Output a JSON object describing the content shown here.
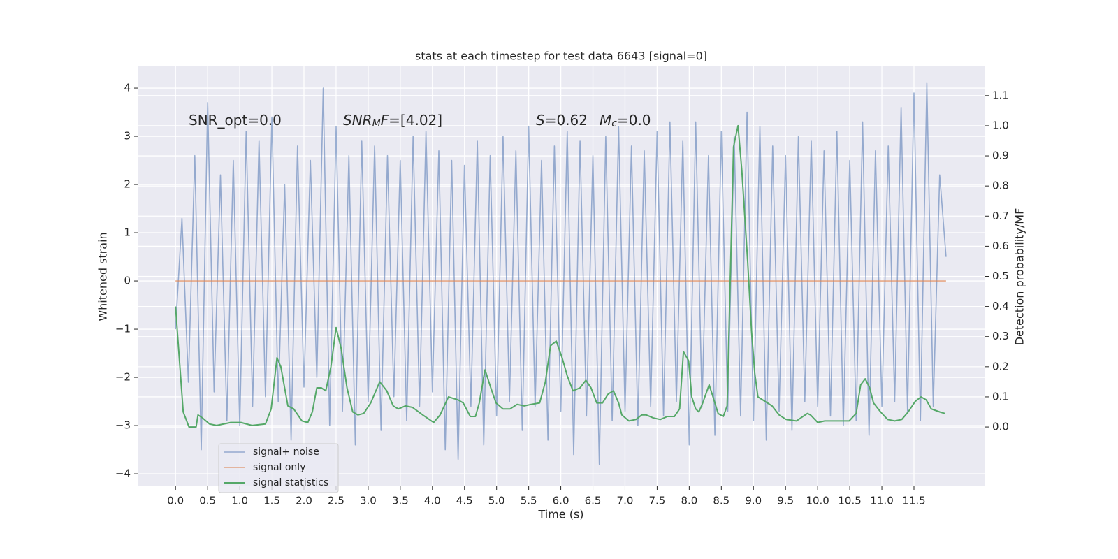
{
  "chart_data": {
    "type": "line",
    "title": "stats at each timestep for test data 6643 [signal=0]",
    "xlabel": "Time (s)",
    "ylabel": "Whitened strain",
    "y2label": "Detection probability/MF",
    "xlim": [
      -0.59,
      12.61
    ],
    "ylim": [
      -4.26,
      4.45
    ],
    "y2lim": [
      -0.197,
      1.197
    ],
    "xticks": [
      {
        "value": 0,
        "label": "0.0"
      },
      0.5,
      {
        "value": 1,
        "label": "1.0"
      },
      1.5,
      {
        "value": 2,
        "label": "2.0"
      },
      2.5,
      {
        "value": 3,
        "label": "3.0"
      },
      3.5,
      {
        "value": 4,
        "label": "4.0"
      },
      4.5,
      {
        "value": 5,
        "label": "5.0"
      },
      5.5,
      {
        "value": 6,
        "label": "6.0"
      },
      6.5,
      {
        "value": 7,
        "label": "7.0"
      },
      7.5,
      {
        "value": 8,
        "label": "8.0"
      },
      8.5,
      {
        "value": 9,
        "label": "9.0"
      },
      9.5,
      {
        "value": 10,
        "label": "10.0"
      },
      10.5,
      {
        "value": 11,
        "label": "11.0"
      },
      11.5
    ],
    "yticks": [
      {
        "value": -4,
        "label": "−4"
      },
      {
        "value": -3,
        "label": "−3"
      },
      {
        "value": -2,
        "label": "−2"
      },
      {
        "value": -1,
        "label": "−1"
      },
      0,
      1,
      2,
      3,
      4
    ],
    "y2ticks": [
      {
        "value": 0,
        "label": "0.0"
      },
      0.1,
      0.2,
      0.3,
      0.4,
      0.5,
      0.6,
      0.7,
      0.8,
      0.9,
      {
        "value": 1,
        "label": "1.0"
      },
      1.1
    ],
    "grid": true,
    "legend": "lower left",
    "annotations": [
      [
        {
          "text": "SNR_opt=0.0"
        }
      ],
      [
        {
          "text": "SNR",
          "style": "italic"
        },
        {
          "text": "M",
          "style": "italic-sub"
        },
        {
          "text": "F",
          "style": "italic"
        },
        {
          "text": "=[4.02]"
        }
      ],
      [
        {
          "text": "S",
          "style": "italic"
        },
        {
          "text": "=0.62"
        }
      ],
      [
        {
          "text": "M",
          "style": "italic"
        },
        {
          "text": "c",
          "style": "italic-sub"
        },
        {
          "text": "=0.0"
        }
      ]
    ],
    "series": [
      {
        "name": "signal+ noise",
        "color": "#4c72b0",
        "x": [
          0.0,
          0.1,
          0.2,
          0.3,
          0.4,
          0.5,
          0.6,
          0.7,
          0.8,
          0.9,
          1.0,
          1.1,
          1.2,
          1.3,
          1.4,
          1.5,
          1.6,
          1.7,
          1.8,
          1.9,
          2.0,
          2.1,
          2.2,
          2.3,
          2.4,
          2.5,
          2.6,
          2.7,
          2.8,
          2.9,
          3.0,
          3.1,
          3.2,
          3.3,
          3.4,
          3.5,
          3.6,
          3.7,
          3.8,
          3.9,
          4.0,
          4.1,
          4.2,
          4.3,
          4.4,
          4.5,
          4.6,
          4.7,
          4.8,
          4.9,
          5.0,
          5.1,
          5.2,
          5.3,
          5.4,
          5.5,
          5.6,
          5.7,
          5.8,
          5.9,
          6.0,
          6.1,
          6.2,
          6.3,
          6.4,
          6.5,
          6.6,
          6.7,
          6.8,
          6.9,
          7.0,
          7.1,
          7.2,
          7.3,
          7.4,
          7.5,
          7.6,
          7.7,
          7.8,
          7.9,
          8.0,
          8.1,
          8.2,
          8.3,
          8.4,
          8.5,
          8.6,
          8.7,
          8.8,
          8.9,
          9.0,
          9.1,
          9.2,
          9.3,
          9.4,
          9.5,
          9.6,
          9.7,
          9.8,
          9.9,
          10.0,
          10.1,
          10.2,
          10.3,
          10.4,
          10.5,
          10.6,
          10.7,
          10.8,
          10.9,
          11.0,
          11.1,
          11.2,
          11.3,
          11.4,
          11.5,
          11.6,
          11.7,
          11.8,
          11.9,
          12.0
        ],
        "values": [
          -1.0,
          1.3,
          -2.1,
          2.6,
          -3.5,
          3.7,
          -2.3,
          2.2,
          -2.9,
          2.5,
          -3.0,
          3.1,
          -2.6,
          2.9,
          -2.4,
          3.4,
          -2.5,
          2.0,
          -3.3,
          2.8,
          -2.2,
          2.5,
          -2.0,
          4.0,
          -3.0,
          3.2,
          -2.7,
          2.6,
          -3.4,
          2.9,
          -2.5,
          2.8,
          -3.1,
          2.6,
          -2.4,
          2.5,
          -2.9,
          3.0,
          -2.6,
          3.1,
          -2.3,
          2.7,
          -3.5,
          2.5,
          -3.7,
          2.4,
          -2.6,
          2.9,
          -3.4,
          2.6,
          -2.8,
          3.0,
          -2.5,
          2.7,
          -3.1,
          3.2,
          -2.6,
          2.5,
          -3.3,
          2.8,
          -2.7,
          3.1,
          -3.6,
          2.9,
          -2.8,
          2.6,
          -3.8,
          3.0,
          -2.9,
          3.2,
          -2.7,
          2.8,
          -3.0,
          2.7,
          -2.6,
          3.1,
          -2.8,
          3.3,
          -2.5,
          2.9,
          -3.4,
          3.3,
          -2.6,
          2.6,
          -3.2,
          3.1,
          -2.7,
          3.0,
          -2.8,
          3.5,
          -2.9,
          3.2,
          -3.3,
          2.8,
          -2.7,
          2.6,
          -3.1,
          3.0,
          -2.5,
          2.9,
          -2.6,
          2.7,
          -2.8,
          3.1,
          -3.0,
          2.5,
          -2.9,
          3.3,
          -3.2,
          2.7,
          -2.6,
          2.8,
          -2.5,
          3.6,
          -2.7,
          3.9,
          -2.9,
          4.1,
          -2.6,
          2.2,
          0.5
        ]
      },
      {
        "name": "signal only",
        "color": "#dd8452",
        "x": [
          0.0,
          12.0
        ],
        "values": [
          0,
          0
        ]
      },
      {
        "name": "signal statistics",
        "color": "#55a868",
        "axis": "y2",
        "x": [
          0,
          0.12,
          0.21,
          0.32,
          0.35,
          0.42,
          0.53,
          0.64,
          0.86,
          1.02,
          1.19,
          1.4,
          1.49,
          1.58,
          1.64,
          1.75,
          1.84,
          1.97,
          2.06,
          2.13,
          2.2,
          2.27,
          2.34,
          2.42,
          2.5,
          2.58,
          2.67,
          2.76,
          2.84,
          2.93,
          3.04,
          3.18,
          3.29,
          3.39,
          3.47,
          3.58,
          3.69,
          3.85,
          4.02,
          4.12,
          4.25,
          4.4,
          4.48,
          4.59,
          4.67,
          4.73,
          4.82,
          4.91,
          4.99,
          5.1,
          5.21,
          5.32,
          5.43,
          5.54,
          5.67,
          5.76,
          5.84,
          5.93,
          6.02,
          6.1,
          6.19,
          6.3,
          6.39,
          6.47,
          6.56,
          6.65,
          6.74,
          6.82,
          6.9,
          6.95,
          7.06,
          7.17,
          7.26,
          7.33,
          7.44,
          7.55,
          7.66,
          7.77,
          7.85,
          7.91,
          7.99,
          8.04,
          8.1,
          8.15,
          8.21,
          8.31,
          8.37,
          8.45,
          8.53,
          8.59,
          8.64,
          8.69,
          8.76,
          8.82,
          8.91,
          8.97,
          9.02,
          9.07,
          9.18,
          9.29,
          9.4,
          9.51,
          9.67,
          9.84,
          9.89,
          10.0,
          10.11,
          10.33,
          10.49,
          10.6,
          10.67,
          10.74,
          10.81,
          10.87,
          10.98,
          11.09,
          11.2,
          11.31,
          11.41,
          11.52,
          11.61,
          11.69,
          11.77,
          11.9,
          11.98
        ],
        "values": [
          0.4,
          0.05,
          0.0,
          0.0,
          0.04,
          0.03,
          0.01,
          0.005,
          0.015,
          0.015,
          0.005,
          0.01,
          0.06,
          0.23,
          0.2,
          0.07,
          0.06,
          0.02,
          0.015,
          0.05,
          0.13,
          0.13,
          0.12,
          0.2,
          0.33,
          0.26,
          0.13,
          0.05,
          0.04,
          0.045,
          0.08,
          0.15,
          0.12,
          0.07,
          0.06,
          0.07,
          0.065,
          0.04,
          0.015,
          0.04,
          0.1,
          0.09,
          0.08,
          0.035,
          0.035,
          0.08,
          0.19,
          0.13,
          0.08,
          0.06,
          0.06,
          0.075,
          0.07,
          0.075,
          0.08,
          0.15,
          0.27,
          0.285,
          0.23,
          0.17,
          0.12,
          0.13,
          0.155,
          0.13,
          0.08,
          0.08,
          0.11,
          0.12,
          0.08,
          0.04,
          0.02,
          0.025,
          0.04,
          0.04,
          0.03,
          0.025,
          0.035,
          0.035,
          0.06,
          0.25,
          0.22,
          0.1,
          0.06,
          0.05,
          0.08,
          0.14,
          0.1,
          0.045,
          0.035,
          0.07,
          0.5,
          0.93,
          1.0,
          0.85,
          0.55,
          0.32,
          0.18,
          0.1,
          0.085,
          0.07,
          0.04,
          0.025,
          0.02,
          0.045,
          0.04,
          0.015,
          0.02,
          0.02,
          0.02,
          0.045,
          0.14,
          0.16,
          0.13,
          0.08,
          0.05,
          0.025,
          0.02,
          0.025,
          0.05,
          0.085,
          0.1,
          0.09,
          0.06,
          0.05,
          0.045
        ]
      }
    ]
  }
}
